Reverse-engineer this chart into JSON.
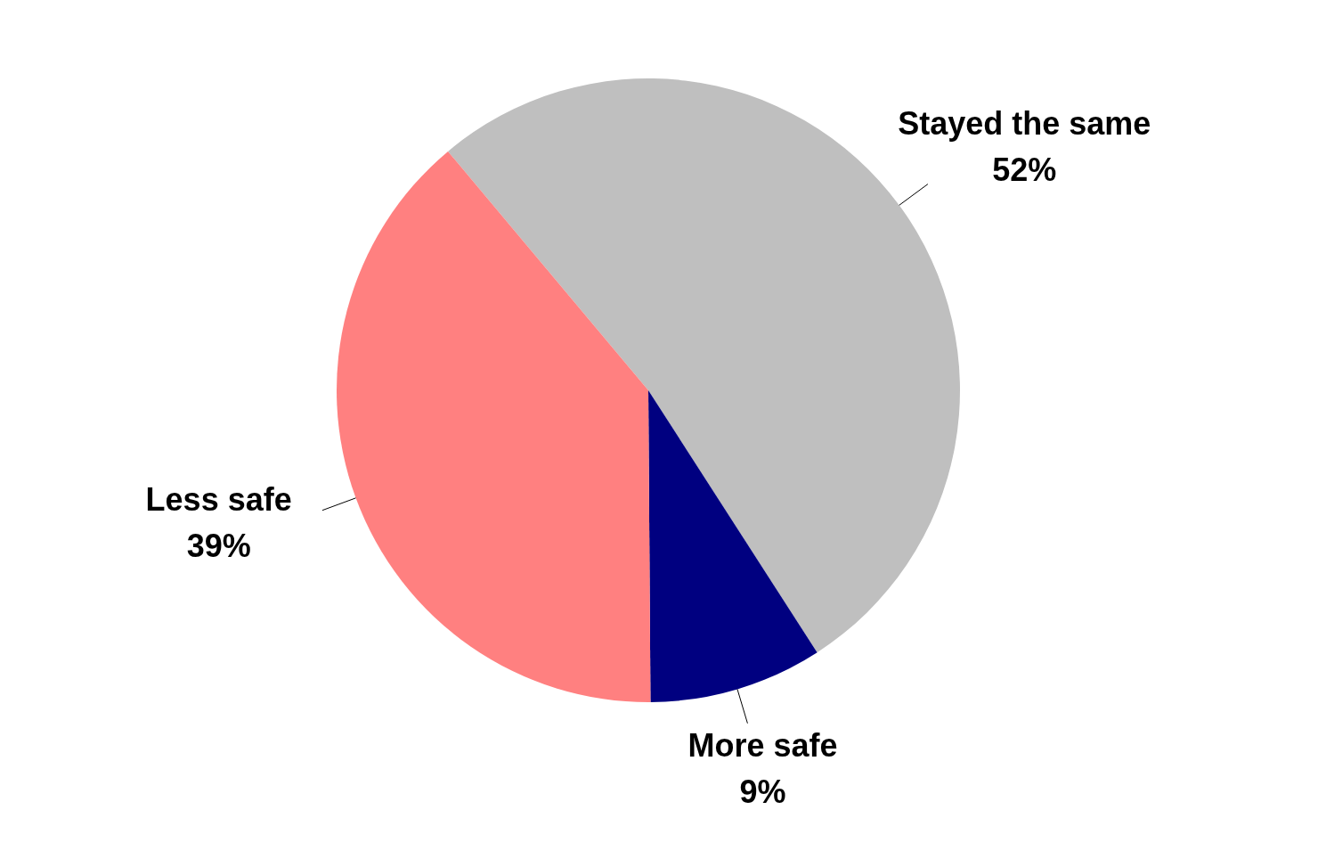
{
  "chart_data": {
    "type": "pie",
    "categories": [
      "Stayed the same",
      "More safe",
      "Less safe"
    ],
    "values": [
      52,
      9,
      39
    ],
    "colors": [
      "#bfbfbf",
      "#000080",
      "#ff8080"
    ],
    "value_labels": [
      "52%",
      "9%",
      "39%"
    ]
  }
}
